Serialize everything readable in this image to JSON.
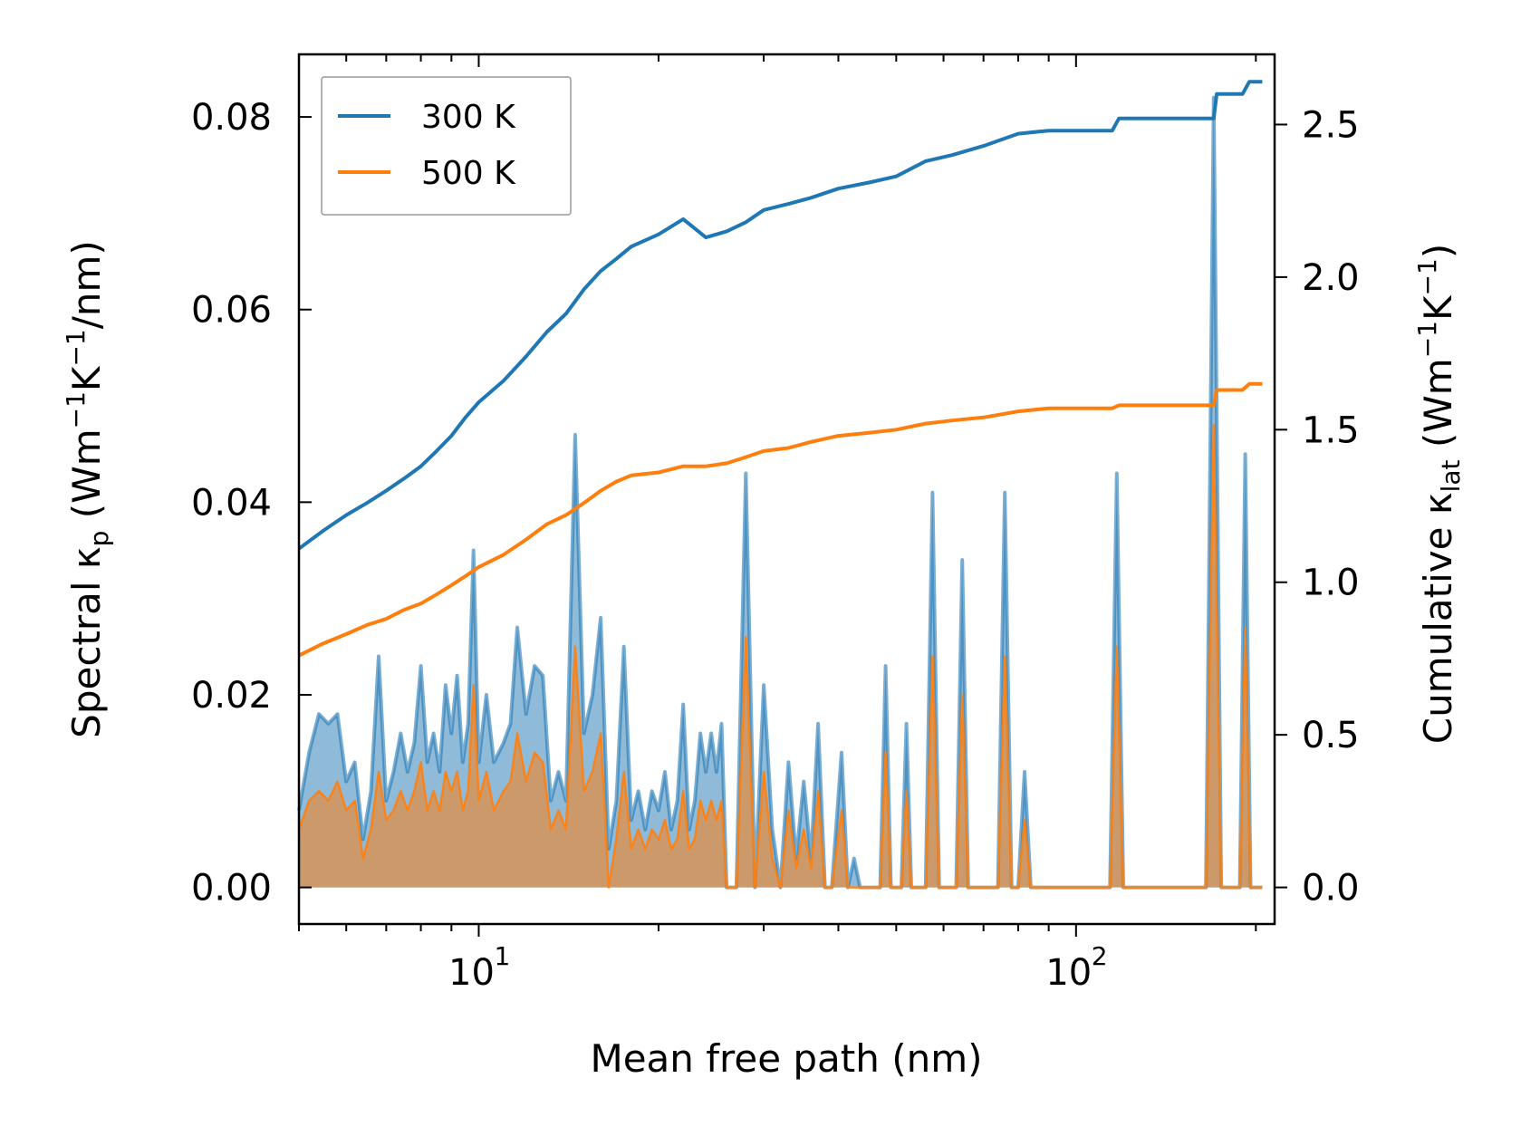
{
  "chart_data": {
    "type": "line",
    "x_scale": "log",
    "xlim": [
      5.0,
      215.0
    ],
    "xlabel": "Mean free path (nm)",
    "x_ticks": [
      {
        "value": 10,
        "base": "10",
        "exp": "1"
      },
      {
        "value": 100,
        "base": "10",
        "exp": "2"
      }
    ],
    "left_axis": {
      "label_parts": {
        "pre": "Spectral κ",
        "sub": "p",
        "mid": " (Wm",
        "sup1": "−1",
        "k": "K",
        "sup2": "−1",
        "post": "/nm)"
      },
      "ylim": [
        -0.0038,
        0.0865
      ],
      "ticks": [
        "0.00",
        "0.02",
        "0.04",
        "0.06",
        "0.08"
      ],
      "tick_values": [
        0.0,
        0.02,
        0.04,
        0.06,
        0.08
      ]
    },
    "right_axis": {
      "label_parts": {
        "pre": "Cumulative κ",
        "sub": "lat",
        "mid": " (Wm",
        "sup1": "−1",
        "k": "K",
        "sup2": "−1",
        "post": ")"
      },
      "ylim": [
        -0.12,
        2.73
      ],
      "ticks": [
        "0.0",
        "0.5",
        "1.0",
        "1.5",
        "2.0",
        "2.5"
      ],
      "tick_values": [
        0.0,
        0.5,
        1.0,
        1.5,
        2.0,
        2.5
      ]
    },
    "legend": {
      "position": "top-left",
      "entries": [
        {
          "label": "300 K",
          "color": "#1f77b4"
        },
        {
          "label": "500 K",
          "color": "#ff7f0e"
        }
      ]
    },
    "series": [
      {
        "name": "300 K",
        "color": "#1f77b4",
        "cumulative_axis": "right",
        "cumulative": [
          [
            5.0,
            1.11
          ],
          [
            5.5,
            1.17
          ],
          [
            6.0,
            1.22
          ],
          [
            6.5,
            1.26
          ],
          [
            7.0,
            1.3
          ],
          [
            7.5,
            1.34
          ],
          [
            8.0,
            1.38
          ],
          [
            8.5,
            1.43
          ],
          [
            9.0,
            1.48
          ],
          [
            9.5,
            1.54
          ],
          [
            10.0,
            1.59
          ],
          [
            11.0,
            1.66
          ],
          [
            12.0,
            1.74
          ],
          [
            13.0,
            1.82
          ],
          [
            14.0,
            1.88
          ],
          [
            15.0,
            1.96
          ],
          [
            16.0,
            2.02
          ],
          [
            17.0,
            2.06
          ],
          [
            18.0,
            2.1
          ],
          [
            20.0,
            2.14
          ],
          [
            22.0,
            2.19
          ],
          [
            24.0,
            2.13
          ],
          [
            26.0,
            2.15
          ],
          [
            28.0,
            2.18
          ],
          [
            30.0,
            2.22
          ],
          [
            33.0,
            2.24
          ],
          [
            36.0,
            2.26
          ],
          [
            40.0,
            2.29
          ],
          [
            45.0,
            2.31
          ],
          [
            50.0,
            2.33
          ],
          [
            56.0,
            2.38
          ],
          [
            62.0,
            2.4
          ],
          [
            70.0,
            2.43
          ],
          [
            80.0,
            2.47
          ],
          [
            90.0,
            2.48
          ],
          [
            115.0,
            2.48
          ],
          [
            118.0,
            2.52
          ],
          [
            170.0,
            2.52
          ],
          [
            172.0,
            2.6
          ],
          [
            190.0,
            2.6
          ],
          [
            195.0,
            2.64
          ],
          [
            205.0,
            2.64
          ]
        ],
        "spectral_axis": "left",
        "spectral": [
          [
            5.0,
            0.008
          ],
          [
            5.2,
            0.014
          ],
          [
            5.4,
            0.018
          ],
          [
            5.6,
            0.017
          ],
          [
            5.8,
            0.018
          ],
          [
            6.0,
            0.011
          ],
          [
            6.2,
            0.013
          ],
          [
            6.4,
            0.005
          ],
          [
            6.6,
            0.01
          ],
          [
            6.8,
            0.024
          ],
          [
            7.0,
            0.009
          ],
          [
            7.2,
            0.012
          ],
          [
            7.4,
            0.016
          ],
          [
            7.6,
            0.012
          ],
          [
            7.8,
            0.015
          ],
          [
            8.0,
            0.023
          ],
          [
            8.2,
            0.013
          ],
          [
            8.4,
            0.016
          ],
          [
            8.6,
            0.012
          ],
          [
            8.8,
            0.021
          ],
          [
            9.0,
            0.016
          ],
          [
            9.2,
            0.022
          ],
          [
            9.4,
            0.013
          ],
          [
            9.6,
            0.017
          ],
          [
            9.8,
            0.035
          ],
          [
            10.0,
            0.013
          ],
          [
            10.3,
            0.02
          ],
          [
            10.6,
            0.013
          ],
          [
            11.0,
            0.015
          ],
          [
            11.3,
            0.017
          ],
          [
            11.6,
            0.027
          ],
          [
            12.0,
            0.018
          ],
          [
            12.4,
            0.023
          ],
          [
            12.8,
            0.022
          ],
          [
            13.2,
            0.009
          ],
          [
            13.6,
            0.012
          ],
          [
            14.0,
            0.009
          ],
          [
            14.5,
            0.047
          ],
          [
            15.0,
            0.016
          ],
          [
            15.5,
            0.02
          ],
          [
            16.0,
            0.028
          ],
          [
            16.5,
            0.004
          ],
          [
            17.0,
            0.009
          ],
          [
            17.5,
            0.025
          ],
          [
            18.0,
            0.007
          ],
          [
            18.5,
            0.01
          ],
          [
            19.0,
            0.006
          ],
          [
            19.5,
            0.01
          ],
          [
            20.0,
            0.008
          ],
          [
            20.5,
            0.012
          ],
          [
            21.0,
            0.006
          ],
          [
            21.5,
            0.009
          ],
          [
            22.0,
            0.019
          ],
          [
            22.5,
            0.006
          ],
          [
            23.0,
            0.009
          ],
          [
            23.5,
            0.016
          ],
          [
            24.0,
            0.012
          ],
          [
            24.5,
            0.016
          ],
          [
            25.0,
            0.012
          ],
          [
            25.5,
            0.017
          ],
          [
            26.0,
            0.0
          ],
          [
            27.0,
            0.0
          ],
          [
            28.0,
            0.043
          ],
          [
            29.0,
            0.0
          ],
          [
            30.0,
            0.021
          ],
          [
            31.0,
            0.006
          ],
          [
            32.0,
            0.0
          ],
          [
            33.0,
            0.013
          ],
          [
            34.0,
            0.003
          ],
          [
            35.0,
            0.011
          ],
          [
            36.0,
            0.003
          ],
          [
            37.0,
            0.017
          ],
          [
            38.0,
            0.0
          ],
          [
            39.0,
            0.0
          ],
          [
            40.5,
            0.014
          ],
          [
            41.5,
            0.0
          ],
          [
            42.5,
            0.003
          ],
          [
            43.5,
            0.0
          ],
          [
            47.0,
            0.0
          ],
          [
            48.0,
            0.023
          ],
          [
            49.0,
            0.0
          ],
          [
            51.0,
            0.0
          ],
          [
            52.0,
            0.017
          ],
          [
            53.0,
            0.0
          ],
          [
            56.0,
            0.0
          ],
          [
            57.5,
            0.041
          ],
          [
            59.0,
            0.0
          ],
          [
            63.0,
            0.0
          ],
          [
            64.5,
            0.034
          ],
          [
            66.0,
            0.0
          ],
          [
            74.0,
            0.0
          ],
          [
            76.0,
            0.041
          ],
          [
            78.0,
            0.0
          ],
          [
            80.0,
            0.0
          ],
          [
            82.0,
            0.012
          ],
          [
            84.0,
            0.0
          ],
          [
            114.0,
            0.0
          ],
          [
            117.0,
            0.043
          ],
          [
            120.0,
            0.0
          ],
          [
            165.0,
            0.0
          ],
          [
            170.0,
            0.082
          ],
          [
            175.0,
            0.0
          ],
          [
            188.0,
            0.0
          ],
          [
            192.0,
            0.045
          ],
          [
            196.0,
            0.0
          ],
          [
            205.0,
            0.0
          ]
        ]
      },
      {
        "name": "500 K",
        "color": "#ff7f0e",
        "cumulative_axis": "right",
        "cumulative": [
          [
            5.0,
            0.76
          ],
          [
            5.5,
            0.8
          ],
          [
            6.0,
            0.83
          ],
          [
            6.5,
            0.86
          ],
          [
            7.0,
            0.88
          ],
          [
            7.5,
            0.91
          ],
          [
            8.0,
            0.93
          ],
          [
            8.5,
            0.96
          ],
          [
            9.0,
            0.99
          ],
          [
            9.5,
            1.02
          ],
          [
            10.0,
            1.05
          ],
          [
            11.0,
            1.09
          ],
          [
            12.0,
            1.14
          ],
          [
            13.0,
            1.19
          ],
          [
            14.0,
            1.22
          ],
          [
            15.0,
            1.26
          ],
          [
            16.0,
            1.3
          ],
          [
            17.0,
            1.33
          ],
          [
            18.0,
            1.35
          ],
          [
            20.0,
            1.36
          ],
          [
            22.0,
            1.38
          ],
          [
            24.0,
            1.38
          ],
          [
            26.0,
            1.39
          ],
          [
            28.0,
            1.41
          ],
          [
            30.0,
            1.43
          ],
          [
            33.0,
            1.44
          ],
          [
            36.0,
            1.46
          ],
          [
            40.0,
            1.48
          ],
          [
            45.0,
            1.49
          ],
          [
            50.0,
            1.5
          ],
          [
            56.0,
            1.52
          ],
          [
            62.0,
            1.53
          ],
          [
            70.0,
            1.54
          ],
          [
            80.0,
            1.56
          ],
          [
            90.0,
            1.57
          ],
          [
            115.0,
            1.57
          ],
          [
            118.0,
            1.58
          ],
          [
            170.0,
            1.58
          ],
          [
            172.0,
            1.63
          ],
          [
            190.0,
            1.63
          ],
          [
            195.0,
            1.65
          ],
          [
            205.0,
            1.65
          ]
        ],
        "spectral_axis": "left",
        "spectral": [
          [
            5.0,
            0.006
          ],
          [
            5.2,
            0.009
          ],
          [
            5.4,
            0.01
          ],
          [
            5.6,
            0.009
          ],
          [
            5.8,
            0.011
          ],
          [
            6.0,
            0.008
          ],
          [
            6.2,
            0.009
          ],
          [
            6.4,
            0.003
          ],
          [
            6.6,
            0.006
          ],
          [
            6.8,
            0.012
          ],
          [
            7.0,
            0.007
          ],
          [
            7.2,
            0.008
          ],
          [
            7.4,
            0.01
          ],
          [
            7.6,
            0.008
          ],
          [
            7.8,
            0.01
          ],
          [
            8.0,
            0.013
          ],
          [
            8.2,
            0.008
          ],
          [
            8.4,
            0.01
          ],
          [
            8.6,
            0.008
          ],
          [
            8.8,
            0.012
          ],
          [
            9.0,
            0.01
          ],
          [
            9.2,
            0.012
          ],
          [
            9.4,
            0.008
          ],
          [
            9.6,
            0.01
          ],
          [
            9.8,
            0.021
          ],
          [
            10.0,
            0.009
          ],
          [
            10.3,
            0.012
          ],
          [
            10.6,
            0.008
          ],
          [
            11.0,
            0.01
          ],
          [
            11.3,
            0.011
          ],
          [
            11.6,
            0.016
          ],
          [
            12.0,
            0.011
          ],
          [
            12.4,
            0.014
          ],
          [
            12.8,
            0.013
          ],
          [
            13.2,
            0.006
          ],
          [
            13.6,
            0.008
          ],
          [
            14.0,
            0.006
          ],
          [
            14.5,
            0.025
          ],
          [
            15.0,
            0.01
          ],
          [
            15.5,
            0.012
          ],
          [
            16.0,
            0.016
          ],
          [
            16.5,
            0.0
          ],
          [
            17.0,
            0.005
          ],
          [
            17.5,
            0.012
          ],
          [
            18.0,
            0.004
          ],
          [
            18.5,
            0.006
          ],
          [
            19.0,
            0.004
          ],
          [
            19.5,
            0.006
          ],
          [
            20.0,
            0.005
          ],
          [
            20.5,
            0.007
          ],
          [
            21.0,
            0.004
          ],
          [
            21.5,
            0.005
          ],
          [
            22.0,
            0.01
          ],
          [
            22.5,
            0.004
          ],
          [
            23.0,
            0.005
          ],
          [
            23.5,
            0.009
          ],
          [
            24.0,
            0.007
          ],
          [
            24.5,
            0.009
          ],
          [
            25.0,
            0.007
          ],
          [
            25.5,
            0.009
          ],
          [
            26.0,
            0.0
          ],
          [
            27.0,
            0.0
          ],
          [
            28.0,
            0.026
          ],
          [
            29.0,
            0.0
          ],
          [
            30.0,
            0.012
          ],
          [
            31.0,
            0.003
          ],
          [
            32.0,
            0.0
          ],
          [
            33.0,
            0.008
          ],
          [
            34.0,
            0.002
          ],
          [
            35.0,
            0.006
          ],
          [
            36.0,
            0.002
          ],
          [
            37.0,
            0.01
          ],
          [
            38.0,
            0.0
          ],
          [
            39.0,
            0.0
          ],
          [
            40.5,
            0.008
          ],
          [
            41.5,
            0.0
          ],
          [
            47.0,
            0.0
          ],
          [
            48.0,
            0.014
          ],
          [
            49.0,
            0.0
          ],
          [
            51.0,
            0.0
          ],
          [
            52.0,
            0.01
          ],
          [
            53.0,
            0.0
          ],
          [
            56.0,
            0.0
          ],
          [
            57.5,
            0.024
          ],
          [
            59.0,
            0.0
          ],
          [
            63.0,
            0.0
          ],
          [
            64.5,
            0.02
          ],
          [
            66.0,
            0.0
          ],
          [
            74.0,
            0.0
          ],
          [
            76.0,
            0.024
          ],
          [
            78.0,
            0.0
          ],
          [
            80.0,
            0.0
          ],
          [
            82.0,
            0.007
          ],
          [
            84.0,
            0.0
          ],
          [
            114.0,
            0.0
          ],
          [
            117.0,
            0.025
          ],
          [
            120.0,
            0.0
          ],
          [
            165.0,
            0.0
          ],
          [
            170.0,
            0.048
          ],
          [
            175.0,
            0.0
          ],
          [
            188.0,
            0.0
          ],
          [
            192.0,
            0.027
          ],
          [
            196.0,
            0.0
          ],
          [
            205.0,
            0.0
          ]
        ]
      }
    ]
  }
}
